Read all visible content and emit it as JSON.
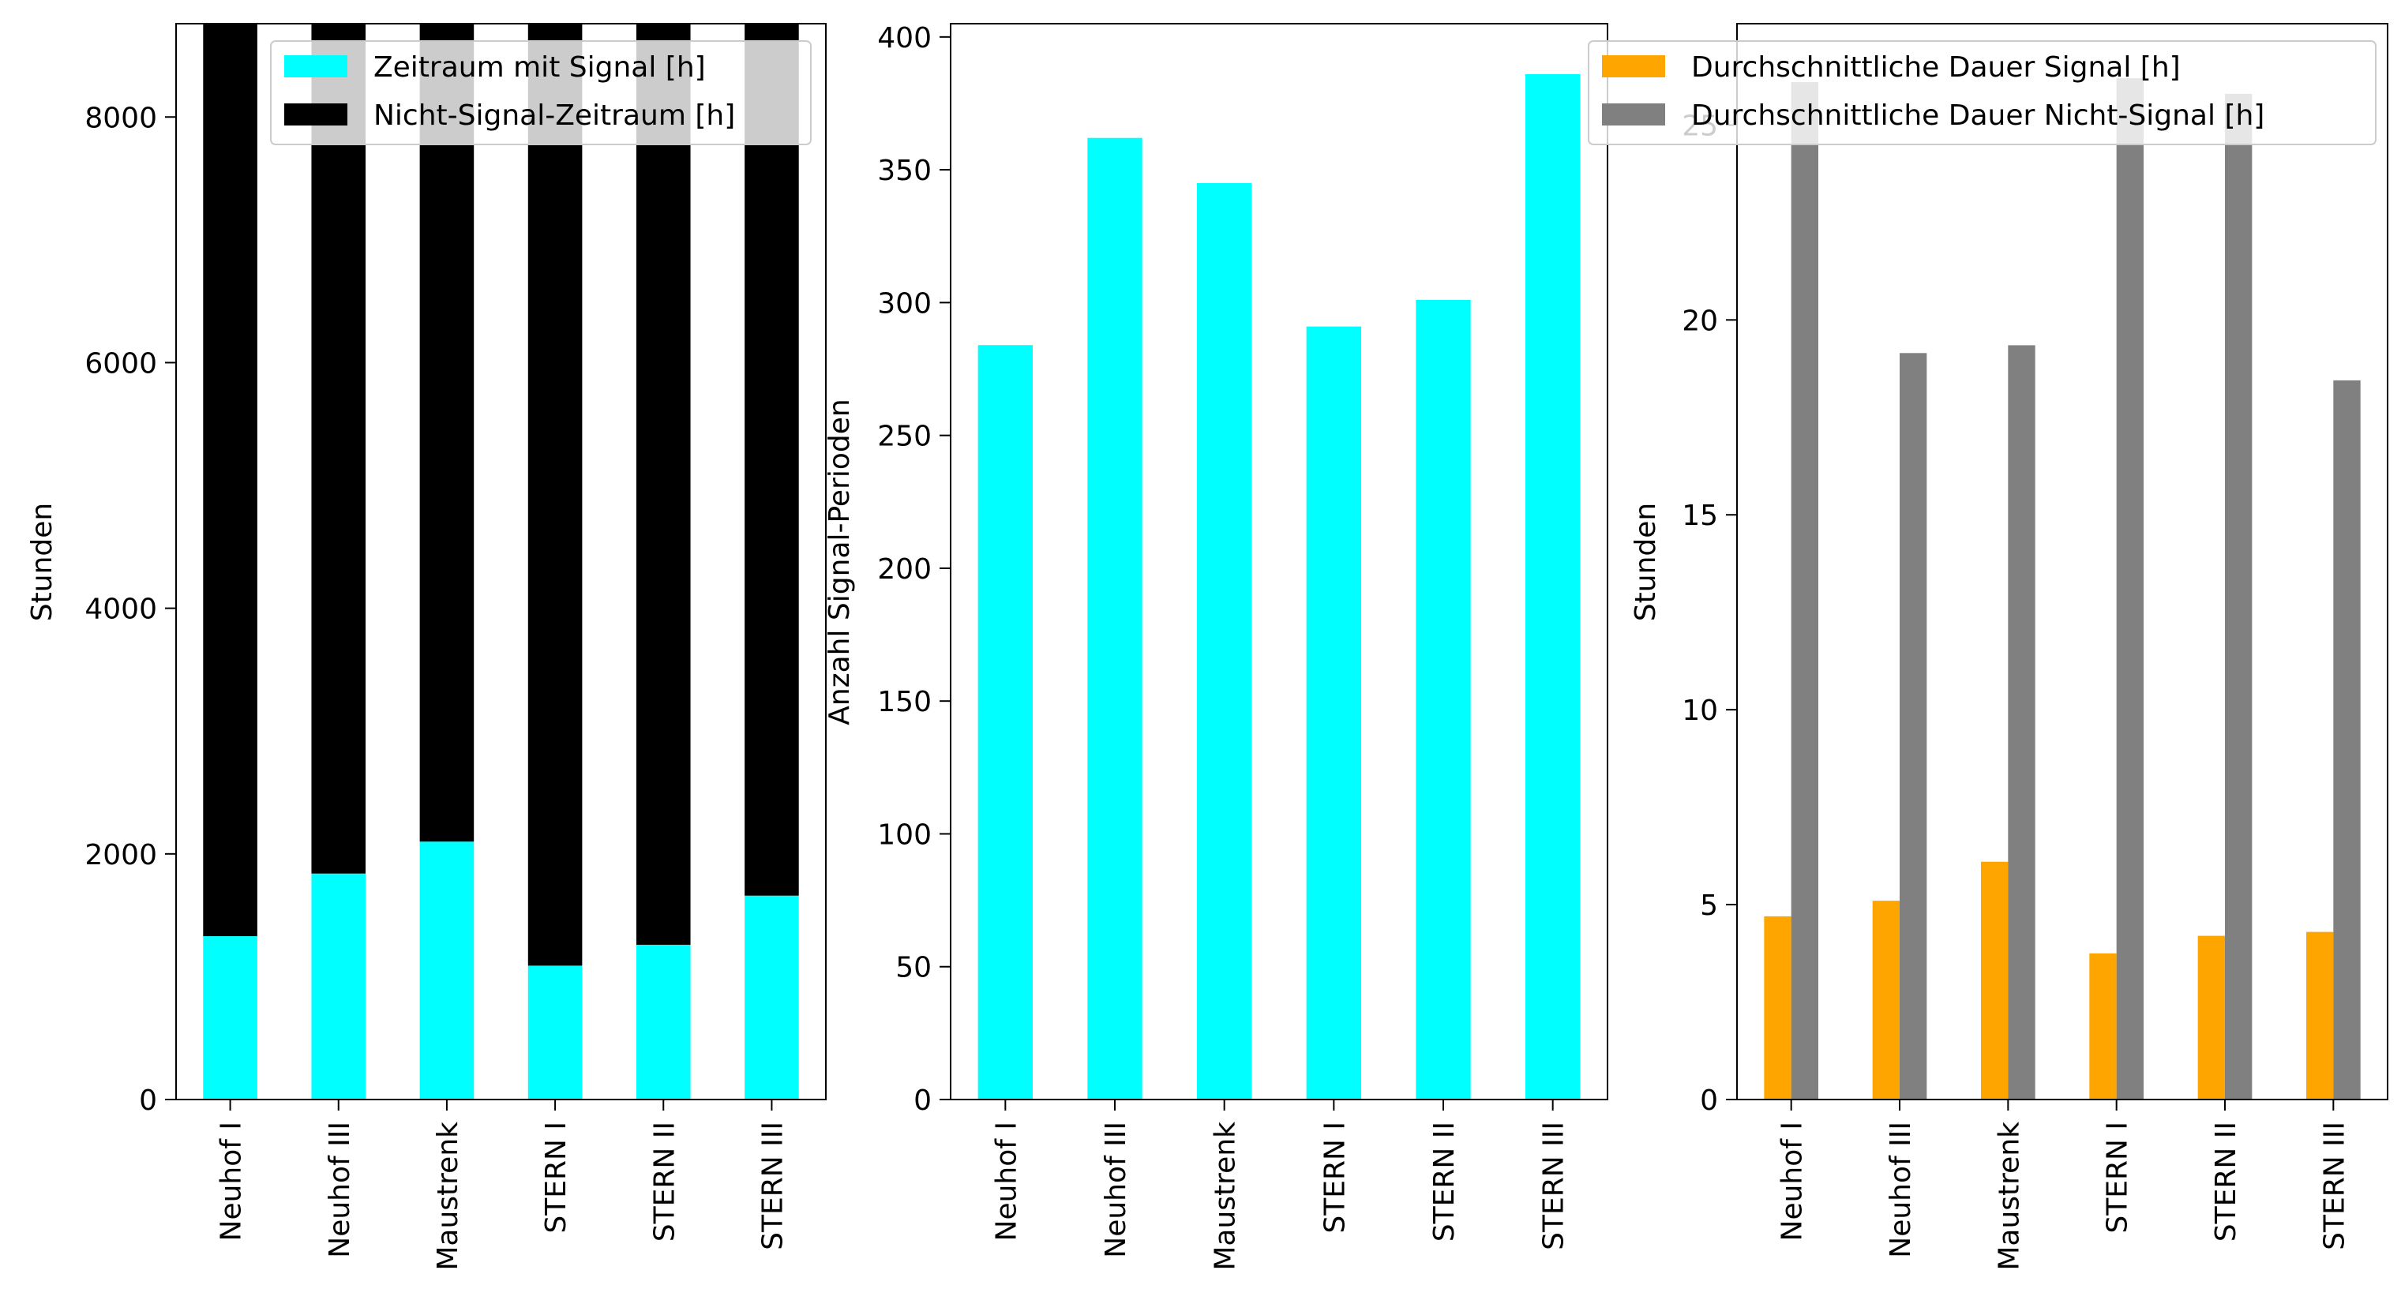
{
  "chart_data": [
    {
      "type": "bar",
      "stacked": true,
      "categories": [
        "Neuhof I",
        "Neuhof III",
        "Maustrenk",
        "STERN I",
        "STERN II",
        "STERN III"
      ],
      "series": [
        {
          "name": "Zeitraum mit Signal [h]",
          "color": "#00ffff",
          "values": [
            1330,
            1840,
            2100,
            1090,
            1260,
            1660
          ]
        },
        {
          "name": "Nicht-Signal-Zeitraum [h]",
          "color": "#000000",
          "values": [
            7430,
            6920,
            6660,
            7670,
            7500,
            7100
          ]
        }
      ],
      "ylabel": "Stunden",
      "xlabel": "",
      "ylim": [
        0,
        8760
      ],
      "yticks": [
        0,
        2000,
        4000,
        6000,
        8000
      ],
      "legend": "top-right",
      "grid": false
    },
    {
      "type": "bar",
      "categories": [
        "Neuhof I",
        "Neuhof III",
        "Maustrenk",
        "STERN I",
        "STERN II",
        "STERN III"
      ],
      "series": [
        {
          "color": "#00ffff",
          "values": [
            284,
            362,
            345,
            291,
            301,
            386
          ]
        }
      ],
      "ylabel": "Anzahl Signal-Perioden",
      "xlabel": "",
      "ylim": [
        0,
        405
      ],
      "yticks": [
        0,
        50,
        100,
        150,
        200,
        250,
        300,
        350,
        400
      ],
      "grid": false
    },
    {
      "type": "bar",
      "grouped": true,
      "categories": [
        "Neuhof I",
        "Neuhof III",
        "Maustrenk",
        "STERN I",
        "STERN II",
        "STERN III"
      ],
      "series": [
        {
          "name": "Durchschnittliche Dauer Signal [h]",
          "color": "#ffa500",
          "values": [
            4.7,
            5.1,
            6.1,
            3.75,
            4.2,
            4.3
          ]
        },
        {
          "name": "Durchschnittliche Dauer Nicht-Signal [h]",
          "color": "#808080",
          "values": [
            26.1,
            19.15,
            19.35,
            26.2,
            25.8,
            18.45
          ]
        }
      ],
      "ylabel": "Stunden",
      "xlabel": "",
      "ylim": [
        0,
        27.6
      ],
      "yticks": [
        0,
        5,
        10,
        15,
        20,
        25
      ],
      "legend": "top-right",
      "grid": false
    }
  ]
}
